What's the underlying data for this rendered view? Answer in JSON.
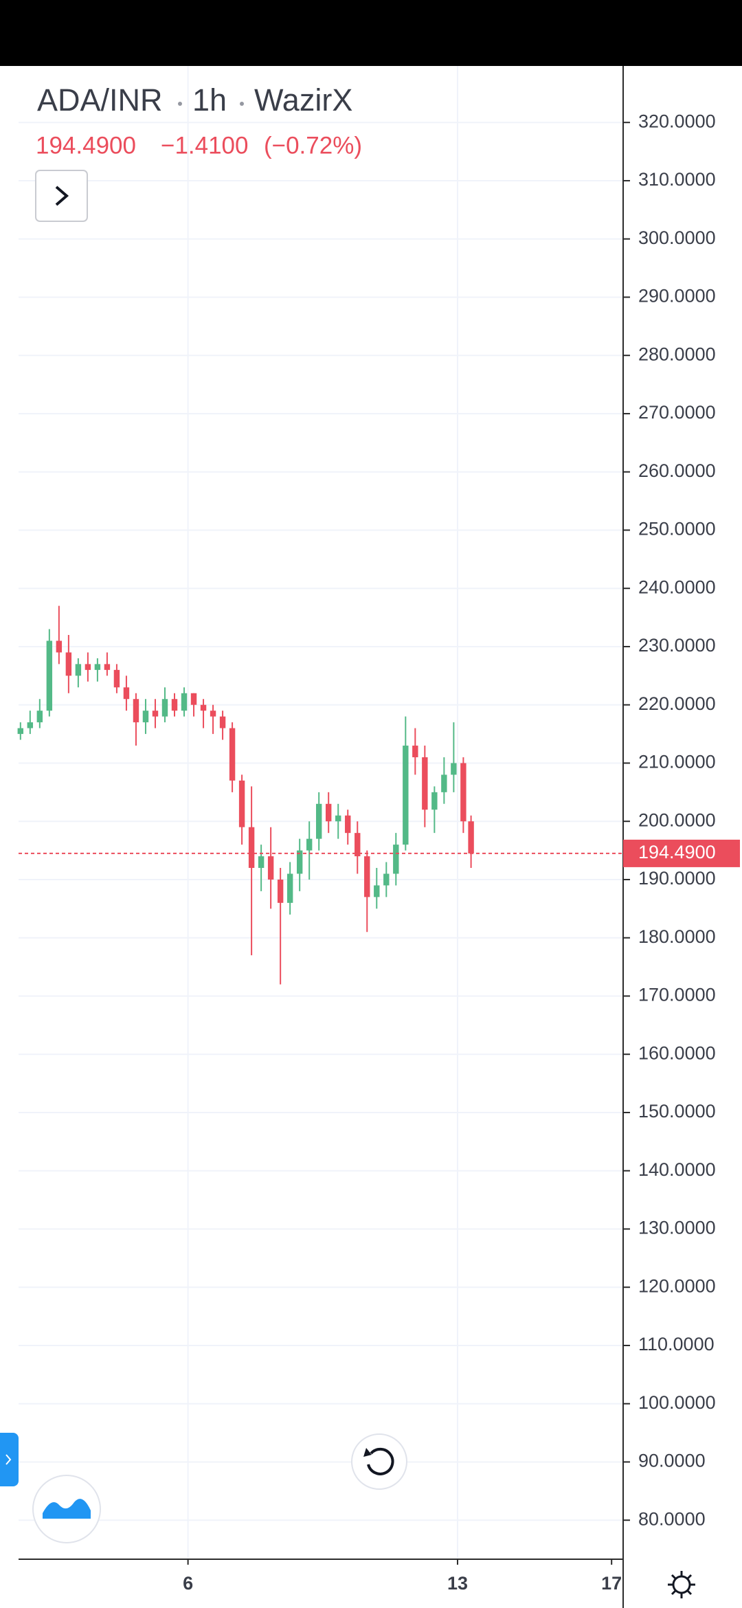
{
  "header": {
    "symbol": "ADA/INR",
    "interval": "1h",
    "exchange": "WazirX",
    "change": "−1.4100",
    "change_pct": "(−0.72%)"
  },
  "chart_data": {
    "type": "candlestick",
    "up_color": "#53b987",
    "down_color": "#eb4d5c",
    "grid": true,
    "xlim": [
      1.6,
      17.3
    ],
    "xticks": [
      6,
      13,
      17
    ],
    "ylim": [
      73.3,
      329.7
    ],
    "yticks": [
      {
        "value": 320,
        "label": "320.0000"
      },
      {
        "value": 310,
        "label": "310.0000"
      },
      {
        "value": 300,
        "label": "300.0000"
      },
      {
        "value": 290,
        "label": "290.0000"
      },
      {
        "value": 280,
        "label": "280.0000"
      },
      {
        "value": 270,
        "label": "270.0000"
      },
      {
        "value": 260,
        "label": "260.0000"
      },
      {
        "value": 250,
        "label": "250.0000"
      },
      {
        "value": 240,
        "label": "240.0000"
      },
      {
        "value": 230,
        "label": "230.0000"
      },
      {
        "value": 220,
        "label": "220.0000"
      },
      {
        "value": 210,
        "label": "210.0000"
      },
      {
        "value": 200,
        "label": "200.0000"
      },
      {
        "value": 190,
        "label": "190.0000"
      },
      {
        "value": 180,
        "label": "180.0000"
      },
      {
        "value": 170,
        "label": "170.0000"
      },
      {
        "value": 160,
        "label": "160.0000"
      },
      {
        "value": 150,
        "label": "150.0000"
      },
      {
        "value": 140,
        "label": "140.0000"
      },
      {
        "value": 130,
        "label": "130.0000"
      },
      {
        "value": 120,
        "label": "120.0000"
      },
      {
        "value": 110,
        "label": "110.0000"
      },
      {
        "value": 100,
        "label": "100.0000"
      },
      {
        "value": 90,
        "label": "90.0000"
      },
      {
        "value": 80,
        "label": "80.0000"
      }
    ],
    "last_price": {
      "value": 194.49,
      "label": "194.4900"
    },
    "x": [
      1.65,
      1.9,
      2.15,
      2.4,
      2.65,
      2.9,
      3.15,
      3.4,
      3.65,
      3.9,
      4.15,
      4.4,
      4.65,
      4.9,
      5.15,
      5.4,
      5.65,
      5.9,
      6.15,
      6.4,
      6.65,
      6.9,
      7.15,
      7.4,
      7.65,
      7.9,
      8.15,
      8.4,
      8.65,
      8.9,
      9.15,
      9.4,
      9.65,
      9.9,
      10.15,
      10.4,
      10.65,
      10.9,
      11.15,
      11.4,
      11.65,
      11.9,
      12.15,
      12.4,
      12.65,
      12.9,
      13.15,
      13.35
    ],
    "open": [
      215,
      216,
      217,
      219,
      231,
      229,
      225,
      227,
      226,
      227,
      226,
      223,
      221,
      217,
      219,
      218,
      221,
      219,
      222,
      220,
      219,
      218,
      216,
      207,
      199,
      192,
      194,
      190,
      186,
      191,
      195,
      197,
      203,
      200,
      201,
      198,
      194,
      187,
      189,
      191,
      196,
      213,
      211,
      202,
      205,
      208,
      210,
      200
    ],
    "high": [
      217,
      219,
      221,
      233,
      237,
      232,
      228,
      229,
      228,
      229,
      227,
      225,
      222,
      221,
      221,
      223,
      222,
      223,
      222,
      221,
      220,
      219,
      217,
      208,
      206,
      196,
      199,
      192,
      193,
      197,
      200,
      205,
      205,
      203,
      202,
      200,
      195,
      192,
      193,
      198,
      218,
      216,
      213,
      206,
      211,
      217,
      211,
      201
    ],
    "low": [
      214,
      215,
      216,
      218,
      227,
      222,
      223,
      224,
      224,
      225,
      222,
      219,
      213,
      215,
      216,
      217,
      218,
      218,
      218,
      216,
      215,
      214,
      205,
      196,
      177,
      188,
      185,
      172,
      184,
      188,
      190,
      195,
      198,
      197,
      196,
      191,
      181,
      185,
      187,
      189,
      195,
      208,
      199,
      198,
      203,
      205,
      198,
      192
    ],
    "close": [
      216,
      217,
      219,
      231,
      229,
      225,
      227,
      226,
      227,
      226,
      223,
      221,
      217,
      219,
      218,
      221,
      219,
      222,
      220,
      219,
      218,
      216,
      207,
      199,
      192,
      194,
      190,
      186,
      191,
      195,
      197,
      203,
      200,
      201,
      198,
      194,
      187,
      189,
      191,
      196,
      213,
      211,
      202,
      205,
      208,
      210,
      200,
      194.49
    ]
  }
}
